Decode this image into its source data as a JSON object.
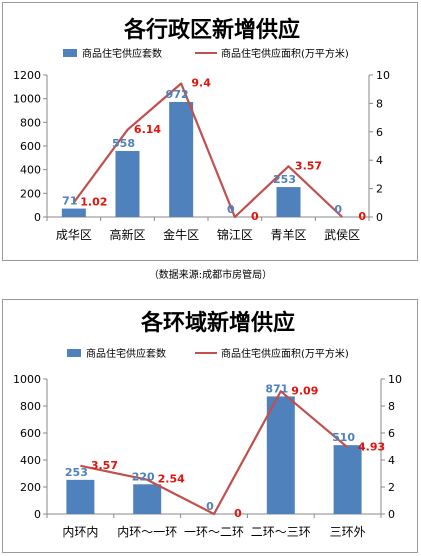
{
  "source_note": "（数据来源:成都市房管局）",
  "chart_data": [
    {
      "type": "bar",
      "title": "各行政区新增供应",
      "categories": [
        "成华区",
        "高新区",
        "金牛区",
        "锦江区",
        "青羊区",
        "武侯区"
      ],
      "series": [
        {
          "name": "商品住宅供应套数",
          "type": "bar",
          "axis": "left",
          "values": [
            71,
            558,
            972,
            0,
            253,
            0
          ],
          "color": "#4f81bd"
        },
        {
          "name": "商品住宅供应面积(万平方米)",
          "type": "line",
          "axis": "right",
          "values": [
            1.02,
            6.14,
            9.4,
            0,
            3.57,
            0
          ],
          "color": "#c0504d"
        }
      ],
      "ylim": [
        0,
        1200
      ],
      "yticks": [
        0,
        200,
        400,
        600,
        800,
        1000,
        1200
      ],
      "y2lim": [
        0,
        10
      ],
      "y2ticks": [
        0,
        2,
        4,
        6,
        8,
        10
      ],
      "legend": "top",
      "grid": false
    },
    {
      "type": "bar",
      "title": "各环域新增供应",
      "categories": [
        "内环内",
        "内环～一环",
        "一环～二环",
        "二环～三环",
        "三环外"
      ],
      "series": [
        {
          "name": "商品住宅供应套数",
          "type": "bar",
          "axis": "left",
          "values": [
            253,
            220,
            0,
            871,
            510
          ],
          "color": "#4f81bd"
        },
        {
          "name": "商品住宅供应面积(万平方米)",
          "type": "line",
          "axis": "right",
          "values": [
            3.57,
            2.54,
            0,
            9.09,
            4.93
          ],
          "color": "#c0504d"
        }
      ],
      "ylim": [
        0,
        1000
      ],
      "yticks": [
        0,
        200,
        400,
        600,
        800,
        1000
      ],
      "y2lim": [
        0,
        10
      ],
      "y2ticks": [
        0,
        2,
        4,
        6,
        8,
        10
      ],
      "legend": "top",
      "grid": false
    }
  ]
}
